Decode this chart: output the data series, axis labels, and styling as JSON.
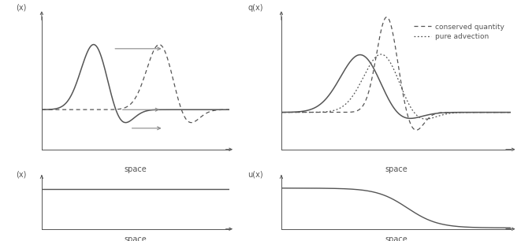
{
  "fig_width": 6.61,
  "fig_height": 3.06,
  "dpi": 100,
  "line_color": "#555555",
  "background": "#ffffff",
  "top_left": {
    "ylabel": "(x)",
    "xlabel": "space"
  },
  "bottom_left": {
    "ylabel": "(x)",
    "xlabel": "space"
  },
  "top_right": {
    "ylabel": "q(x)",
    "xlabel": "space",
    "legend": [
      "conserved quantity",
      "pure advection"
    ]
  },
  "bottom_right": {
    "ylabel": "u(x)",
    "xlabel": "space"
  },
  "axes_positions": {
    "tl": [
      0.08,
      0.38,
      0.36,
      0.55
    ],
    "bl": [
      0.08,
      0.05,
      0.36,
      0.22
    ],
    "tr": [
      0.54,
      0.38,
      0.44,
      0.55
    ],
    "br": [
      0.54,
      0.05,
      0.44,
      0.22
    ]
  }
}
